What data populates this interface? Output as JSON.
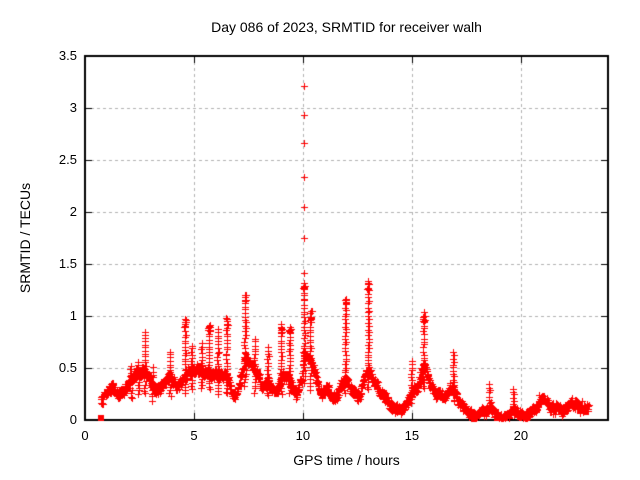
{
  "window": {
    "background": "#ffffff"
  },
  "chart_data": {
    "type": "scatter",
    "title": "Day 086 of 2023, SRMTID for receiver walh",
    "xlabel": "GPS time / hours",
    "ylabel": "SRMTID / TECUs",
    "xlim": [
      0,
      24
    ],
    "ylim": [
      0,
      3.5
    ],
    "xticks": [
      0,
      5,
      10,
      15,
      20
    ],
    "yticks": [
      0,
      0.5,
      1,
      1.5,
      2,
      2.5,
      3,
      3.5
    ],
    "grid": true,
    "legend": null,
    "marker": "plus",
    "marker_color": "#ff0000",
    "axis_color": "#000000",
    "grid_color": "#b0b0b0",
    "seed": 20230086,
    "time_range": [
      0.73,
      23.12
    ],
    "sample_step_hours": 0.012,
    "start_marker": {
      "t": 0.73,
      "y": 0.02
    },
    "baseline_points": [
      [
        0.7,
        0.18
      ],
      [
        1.0,
        0.2
      ],
      [
        1.3,
        0.27
      ],
      [
        1.6,
        0.21
      ],
      [
        1.9,
        0.3
      ],
      [
        2.2,
        0.36
      ],
      [
        2.45,
        0.42
      ],
      [
        2.75,
        0.42
      ],
      [
        3.0,
        0.33
      ],
      [
        3.3,
        0.28
      ],
      [
        3.6,
        0.3
      ],
      [
        3.9,
        0.38
      ],
      [
        4.2,
        0.3
      ],
      [
        4.5,
        0.42
      ],
      [
        4.8,
        0.48
      ],
      [
        5.1,
        0.55
      ],
      [
        5.35,
        0.52
      ],
      [
        5.7,
        0.48
      ],
      [
        6.0,
        0.42
      ],
      [
        6.3,
        0.38
      ],
      [
        6.55,
        0.42
      ],
      [
        6.8,
        0.25
      ],
      [
        7.05,
        0.33
      ],
      [
        7.35,
        0.55
      ],
      [
        7.6,
        0.52
      ],
      [
        7.9,
        0.42
      ],
      [
        8.15,
        0.28
      ],
      [
        8.4,
        0.4
      ],
      [
        8.7,
        0.28
      ],
      [
        9.0,
        0.42
      ],
      [
        9.35,
        0.45
      ],
      [
        9.7,
        0.28
      ],
      [
        9.95,
        0.4
      ],
      [
        10.05,
        0.6
      ],
      [
        10.2,
        0.55
      ],
      [
        10.5,
        0.45
      ],
      [
        10.8,
        0.3
      ],
      [
        11.1,
        0.33
      ],
      [
        11.5,
        0.24
      ],
      [
        11.95,
        0.45
      ],
      [
        12.2,
        0.35
      ],
      [
        12.6,
        0.22
      ],
      [
        13.0,
        0.5
      ],
      [
        13.25,
        0.35
      ],
      [
        13.6,
        0.2
      ],
      [
        14.0,
        0.17
      ],
      [
        14.4,
        0.14
      ],
      [
        14.75,
        0.18
      ],
      [
        15.0,
        0.28
      ],
      [
        15.3,
        0.3
      ],
      [
        15.55,
        0.5
      ],
      [
        15.8,
        0.33
      ],
      [
        16.1,
        0.23
      ],
      [
        16.5,
        0.16
      ],
      [
        16.88,
        0.3
      ],
      [
        17.2,
        0.18
      ],
      [
        17.6,
        0.1
      ],
      [
        18.0,
        0.08
      ],
      [
        18.3,
        0.1
      ],
      [
        18.55,
        0.18
      ],
      [
        18.8,
        0.09
      ],
      [
        19.1,
        0.06
      ],
      [
        19.4,
        0.08
      ],
      [
        19.65,
        0.16
      ],
      [
        19.9,
        0.09
      ],
      [
        20.2,
        0.09
      ],
      [
        20.5,
        0.13
      ],
      [
        20.8,
        0.18
      ],
      [
        21.1,
        0.2
      ],
      [
        21.4,
        0.16
      ],
      [
        21.7,
        0.12
      ],
      [
        22.0,
        0.11
      ],
      [
        22.3,
        0.17
      ],
      [
        22.6,
        0.16
      ],
      [
        22.9,
        0.15
      ],
      [
        23.12,
        0.15
      ]
    ],
    "spikes": [
      [
        2.1,
        0.52
      ],
      [
        2.45,
        0.55
      ],
      [
        2.75,
        0.85
      ],
      [
        3.1,
        0.5
      ],
      [
        3.9,
        0.66
      ],
      [
        4.6,
        0.97
      ],
      [
        4.9,
        0.72
      ],
      [
        5.35,
        0.73
      ],
      [
        5.7,
        0.92
      ],
      [
        6.1,
        0.87
      ],
      [
        6.5,
        0.98
      ],
      [
        7.35,
        1.21
      ],
      [
        7.8,
        0.78
      ],
      [
        8.4,
        0.7
      ],
      [
        9.0,
        0.92
      ],
      [
        9.4,
        0.9
      ],
      [
        10.05,
        1.32
      ],
      [
        10.35,
        1.05
      ],
      [
        11.95,
        1.17
      ],
      [
        13.0,
        1.33
      ],
      [
        15.0,
        0.56
      ],
      [
        15.55,
        1.03
      ],
      [
        16.9,
        0.66
      ],
      [
        18.55,
        0.35
      ],
      [
        19.65,
        0.3
      ]
    ],
    "outliers": [
      [
        10.05,
        3.21
      ],
      [
        10.07,
        2.93
      ],
      [
        10.04,
        2.66
      ],
      [
        10.06,
        2.34
      ],
      [
        10.05,
        2.05
      ],
      [
        10.07,
        1.75
      ],
      [
        10.05,
        1.41
      ]
    ]
  }
}
